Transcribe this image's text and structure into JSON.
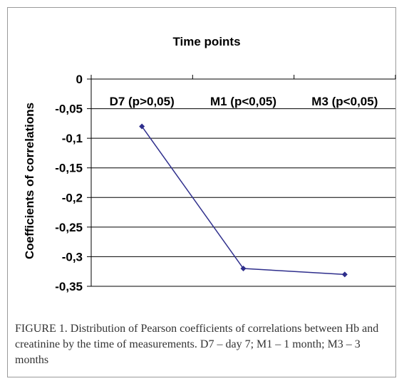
{
  "chart_data": {
    "type": "line",
    "title": "Time points",
    "xlabel": "",
    "ylabel": "Coefficients of correlations",
    "categories": [
      "D7 (p>0,05)",
      "M1 (p<0,05)",
      "M3 (p<0,05)"
    ],
    "series": [
      {
        "values": [
          -0.08,
          -0.32,
          -0.33
        ],
        "color": "#2e2e8c"
      }
    ],
    "ylim": [
      -0.35,
      0
    ],
    "yticks": [
      0,
      -0.05,
      -0.1,
      -0.15,
      -0.2,
      -0.25,
      -0.3,
      -0.35
    ],
    "ytick_labels": [
      "0",
      "-0,05",
      "-0,1",
      "-0,15",
      "-0,2",
      "-0,25",
      "-0,3",
      "-0,35"
    ],
    "x_axis_position": "top",
    "grid": true,
    "legend": "none"
  },
  "caption": "FIGURE 1.  Distribution of Pearson coefficients of correlations between Hb and creatinine by the time of measurements. D7 – day 7; M1 – 1 month; M3 – 3 months"
}
